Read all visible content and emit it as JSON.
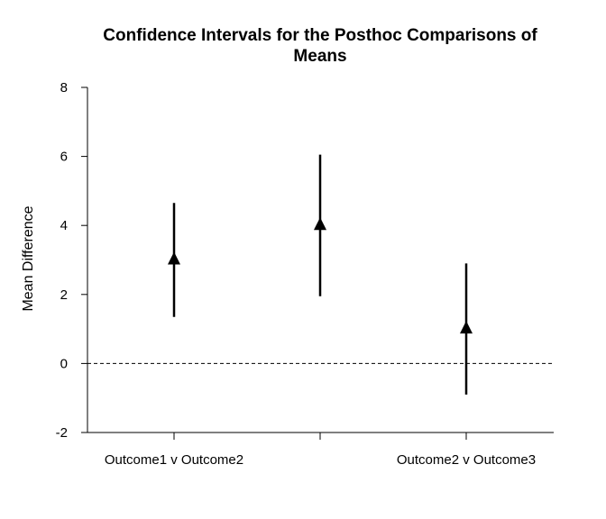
{
  "chart_data": {
    "type": "scatter",
    "title_lines": [
      "Confidence Intervals for the Posthoc Comparisons of",
      "Means"
    ],
    "xlabel": "",
    "ylabel": "Mean Difference",
    "ylim": [
      -2,
      8
    ],
    "yticks": [
      "-2",
      "0",
      "2",
      "4",
      "6",
      "8"
    ],
    "categories": [
      "Outcome1 v Outcome2",
      "",
      "Outcome2 v Outcome3"
    ],
    "points": [
      {
        "estimate": 3.0,
        "lower": 1.35,
        "upper": 4.65
      },
      {
        "estimate": 4.0,
        "lower": 1.95,
        "upper": 6.05
      },
      {
        "estimate": 1.0,
        "lower": -0.9,
        "upper": 2.9
      }
    ],
    "reference_line": 0,
    "grid": false,
    "legend": "none"
  }
}
